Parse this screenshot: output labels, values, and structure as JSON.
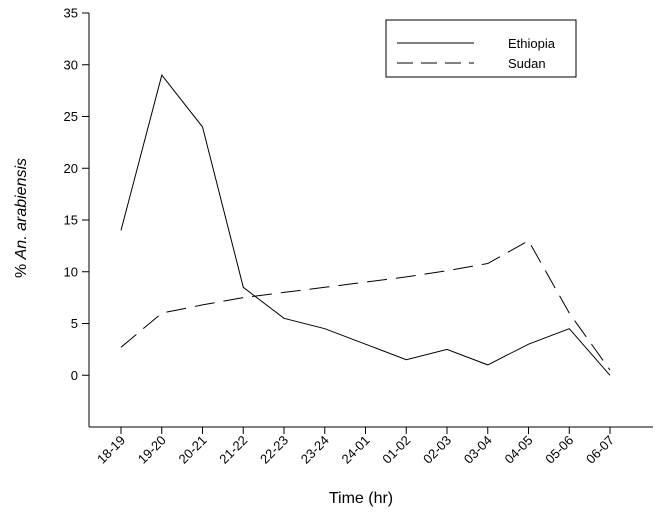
{
  "chart_data": {
    "type": "line",
    "categories": [
      "18-19",
      "19-20",
      "20-21",
      "21-22",
      "22-23",
      "23-24",
      "24-01",
      "01-02",
      "02-03",
      "03-04",
      "04-05",
      "05-06",
      "06-07"
    ],
    "series": [
      {
        "name": "Ethiopia",
        "values": [
          14,
          29,
          24,
          8.5,
          5.5,
          4.5,
          3,
          1.5,
          2.5,
          1,
          3,
          4.5,
          0
        ],
        "line_style": "solid"
      },
      {
        "name": "Sudan",
        "values": [
          2.7,
          6,
          6.8,
          7.5,
          8,
          8.5,
          9,
          9.5,
          10.1,
          10.8,
          13,
          6,
          0.5
        ],
        "line_style": "dashed"
      }
    ],
    "xlabel": "Time (hr)",
    "ylabel_prefix": "% ",
    "ylabel_italic": "An. arabiensis",
    "ylim": [
      -5,
      35
    ],
    "y_ticks": [
      0,
      5,
      10,
      15,
      20,
      25,
      30,
      35
    ],
    "y_tick_labels": [
      "0",
      "5",
      "10",
      "15",
      "20",
      "25",
      "30",
      "35"
    ],
    "legend_position": "top-right",
    "grid": false,
    "line_color": "#000000"
  }
}
